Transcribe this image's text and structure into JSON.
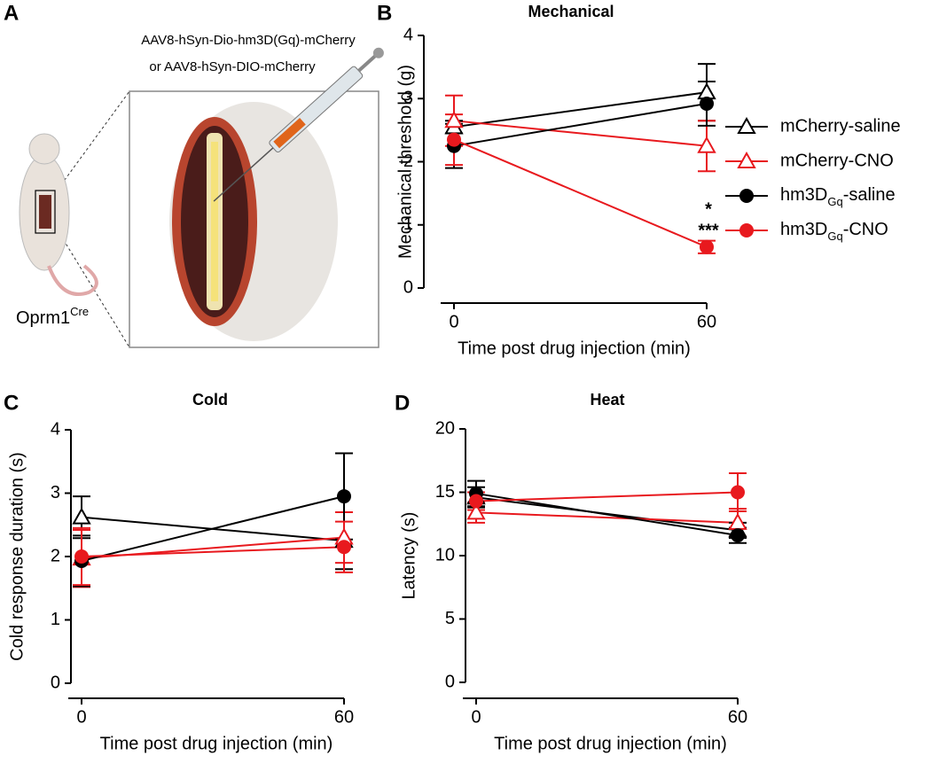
{
  "panel_a": {
    "label": "A",
    "construct_line1": "AAV8-hSyn-Dio-hm3D(Gq)-mCherry",
    "construct_line2": "or AAV8-hSyn-DIO-mCherry",
    "mouse_label": "Oprm1Cre",
    "mouse_label_superscript": "Cre"
  },
  "chart_data": [
    {
      "type": "line",
      "panel": "B",
      "title": "Mechanical",
      "xlabel": "Time post drug injection (min)",
      "ylabel": "Mechanical threshold (g)",
      "x": [
        0,
        60
      ],
      "xlim": [
        0,
        60
      ],
      "xticks": [
        0,
        60
      ],
      "ylim": [
        0,
        4
      ],
      "yticks": [
        0,
        1,
        2,
        3,
        4
      ],
      "legend": "right",
      "annotations": [
        "*",
        "***"
      ],
      "series": [
        {
          "name": "mCherry-saline",
          "color": "#000000",
          "marker": "triangle-open",
          "values": [
            2.55,
            3.1
          ],
          "errors": [
            0.1,
            0.45
          ]
        },
        {
          "name": "mCherry-CNO",
          "color": "#e8191e",
          "marker": "triangle-open",
          "values": [
            2.65,
            2.25
          ],
          "errors": [
            0.4,
            0.4
          ]
        },
        {
          "name": "hm3DGq-saline",
          "name_subscript": "Gq",
          "color": "#000000",
          "marker": "circle",
          "values": [
            2.25,
            2.92
          ],
          "errors": [
            0.35,
            0.35
          ]
        },
        {
          "name": "hm3DGq-CNO",
          "name_subscript": "Gq",
          "color": "#e8191e",
          "marker": "circle",
          "values": [
            2.35,
            0.65
          ],
          "errors": [
            0.4,
            0.1
          ]
        }
      ]
    },
    {
      "type": "line",
      "panel": "C",
      "title": "Cold",
      "xlabel": "Time post drug injection (min)",
      "ylabel": "Cold response duration (s)",
      "x": [
        0,
        60
      ],
      "xlim": [
        0,
        60
      ],
      "xticks": [
        0,
        60
      ],
      "ylim": [
        0,
        4
      ],
      "yticks": [
        0,
        1,
        2,
        3,
        4
      ],
      "series": [
        {
          "name": "mCherry-saline",
          "color": "#000000",
          "marker": "triangle-open",
          "values": [
            2.62,
            2.25
          ],
          "errors": [
            0.33,
            0.45
          ]
        },
        {
          "name": "mCherry-CNO",
          "color": "#e8191e",
          "marker": "triangle-open",
          "values": [
            1.97,
            2.3
          ],
          "errors": [
            0.45,
            0.4
          ]
        },
        {
          "name": "hm3DGq-saline",
          "name_subscript": "Gq",
          "color": "#000000",
          "marker": "circle",
          "values": [
            1.93,
            2.95
          ],
          "errors": [
            0.4,
            0.68
          ]
        },
        {
          "name": "hm3DGq-CNO",
          "name_subscript": "Gq",
          "color": "#e8191e",
          "marker": "circle",
          "values": [
            2.0,
            2.15
          ],
          "errors": [
            0.45,
            0.4
          ]
        }
      ]
    },
    {
      "type": "line",
      "panel": "D",
      "title": "Heat",
      "xlabel": "Time post drug injection (min)",
      "ylabel": "Latency (s)",
      "x": [
        0,
        60
      ],
      "xlim": [
        0,
        60
      ],
      "xticks": [
        0,
        60
      ],
      "ylim": [
        0,
        20
      ],
      "yticks": [
        0,
        5,
        10,
        15,
        20
      ],
      "series": [
        {
          "name": "mCherry-saline",
          "color": "#000000",
          "marker": "triangle-open",
          "values": [
            14.6,
            12.0
          ],
          "errors": [
            0.8,
            0.6
          ]
        },
        {
          "name": "mCherry-CNO",
          "color": "#e8191e",
          "marker": "triangle-open",
          "values": [
            13.4,
            12.6
          ],
          "errors": [
            0.8,
            1.1
          ]
        },
        {
          "name": "hm3DGq-saline",
          "name_subscript": "Gq",
          "color": "#000000",
          "marker": "circle",
          "values": [
            14.9,
            11.6
          ],
          "errors": [
            1.0,
            0.6
          ]
        },
        {
          "name": "hm3DGq-CNO",
          "name_subscript": "Gq",
          "color": "#e8191e",
          "marker": "circle",
          "values": [
            14.3,
            15.0
          ],
          "errors": [
            0.7,
            1.5
          ]
        }
      ]
    }
  ]
}
